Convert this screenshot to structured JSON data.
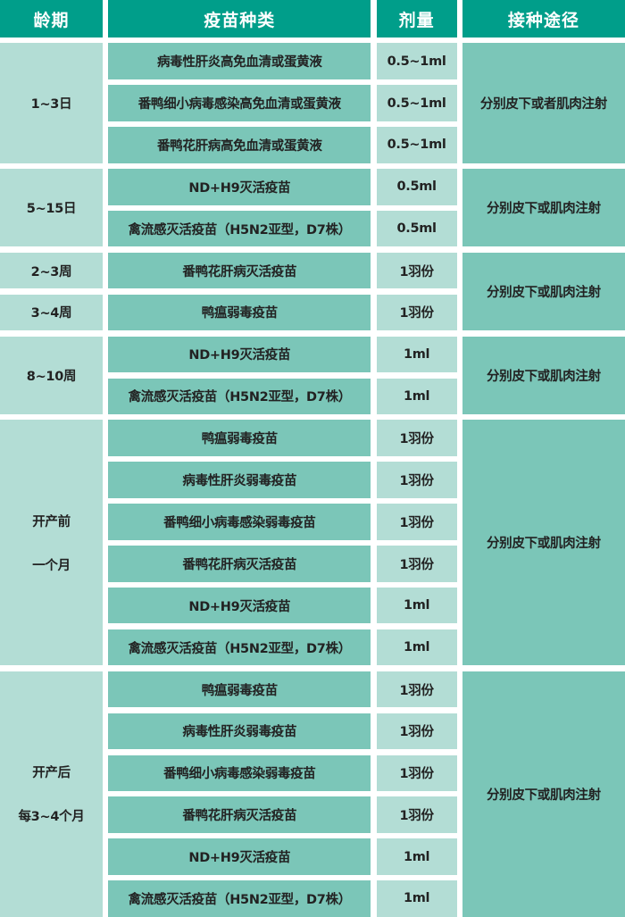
{
  "colors": {
    "header": "#009e8a",
    "light": "#b3ddd5",
    "dark": "#7bc6b8",
    "text": "#222222"
  },
  "headers": [
    "龄期",
    "疫苗种类",
    "剂量",
    "接种途径"
  ],
  "groups": [
    {
      "ages": [
        "1~3日"
      ],
      "route": "分别皮下或者肌肉注射",
      "rows": [
        {
          "vaccine": "病毒性肝炎高免血清或蛋黄液",
          "dose": "0.5~1ml"
        },
        {
          "vaccine": "番鸭细小病毒感染高免血清或蛋黄液",
          "dose": "0.5~1ml"
        },
        {
          "vaccine": "番鸭花肝病高免血清或蛋黄液",
          "dose": "0.5~1ml"
        }
      ]
    },
    {
      "ages": [
        "5~15日"
      ],
      "route": "分别皮下或肌肉注射",
      "rows": [
        {
          "vaccine": "ND+H9灭活疫苗",
          "dose": "0.5ml"
        },
        {
          "vaccine": "禽流感灭活疫苗（H5N2亚型，D7株）",
          "dose": "0.5ml"
        }
      ]
    },
    {
      "ages": [
        "2~3周",
        "3~4周"
      ],
      "age_per_row": true,
      "route": "分别皮下或肌肉注射",
      "rows": [
        {
          "vaccine": "番鸭花肝病灭活疫苗",
          "dose": "1羽份"
        },
        {
          "vaccine": "鸭瘟弱毒疫苗",
          "dose": "1羽份"
        }
      ]
    },
    {
      "ages": [
        "8~10周"
      ],
      "route": "分别皮下或肌肉注射",
      "rows": [
        {
          "vaccine": "ND+H9灭活疫苗",
          "dose": "1ml"
        },
        {
          "vaccine": "禽流感灭活疫苗（H5N2亚型，D7株）",
          "dose": "1ml"
        }
      ]
    },
    {
      "ages": [
        "开产前",
        "一个月"
      ],
      "route": "分别皮下或肌肉注射",
      "rows": [
        {
          "vaccine": "鸭瘟弱毒疫苗",
          "dose": "1羽份"
        },
        {
          "vaccine": "病毒性肝炎弱毒疫苗",
          "dose": "1羽份"
        },
        {
          "vaccine": "番鸭细小病毒感染弱毒疫苗",
          "dose": "1羽份"
        },
        {
          "vaccine": "番鸭花肝病灭活疫苗",
          "dose": "1羽份"
        },
        {
          "vaccine": "ND+H9灭活疫苗",
          "dose": "1ml"
        },
        {
          "vaccine": "禽流感灭活疫苗（H5N2亚型，D7株）",
          "dose": "1ml"
        }
      ]
    },
    {
      "ages": [
        "开产后",
        "每3~4个月"
      ],
      "route": "分别皮下或肌肉注射",
      "rows": [
        {
          "vaccine": "鸭瘟弱毒疫苗",
          "dose": "1羽份"
        },
        {
          "vaccine": "病毒性肝炎弱毒疫苗",
          "dose": "1羽份"
        },
        {
          "vaccine": "番鸭细小病毒感染弱毒疫苗",
          "dose": "1羽份"
        },
        {
          "vaccine": "番鸭花肝病灭活疫苗",
          "dose": "1羽份"
        },
        {
          "vaccine": "ND+H9灭活疫苗",
          "dose": "1ml"
        },
        {
          "vaccine": "禽流感灭活疫苗（H5N2亚型，D7株）",
          "dose": "1ml"
        }
      ]
    }
  ]
}
